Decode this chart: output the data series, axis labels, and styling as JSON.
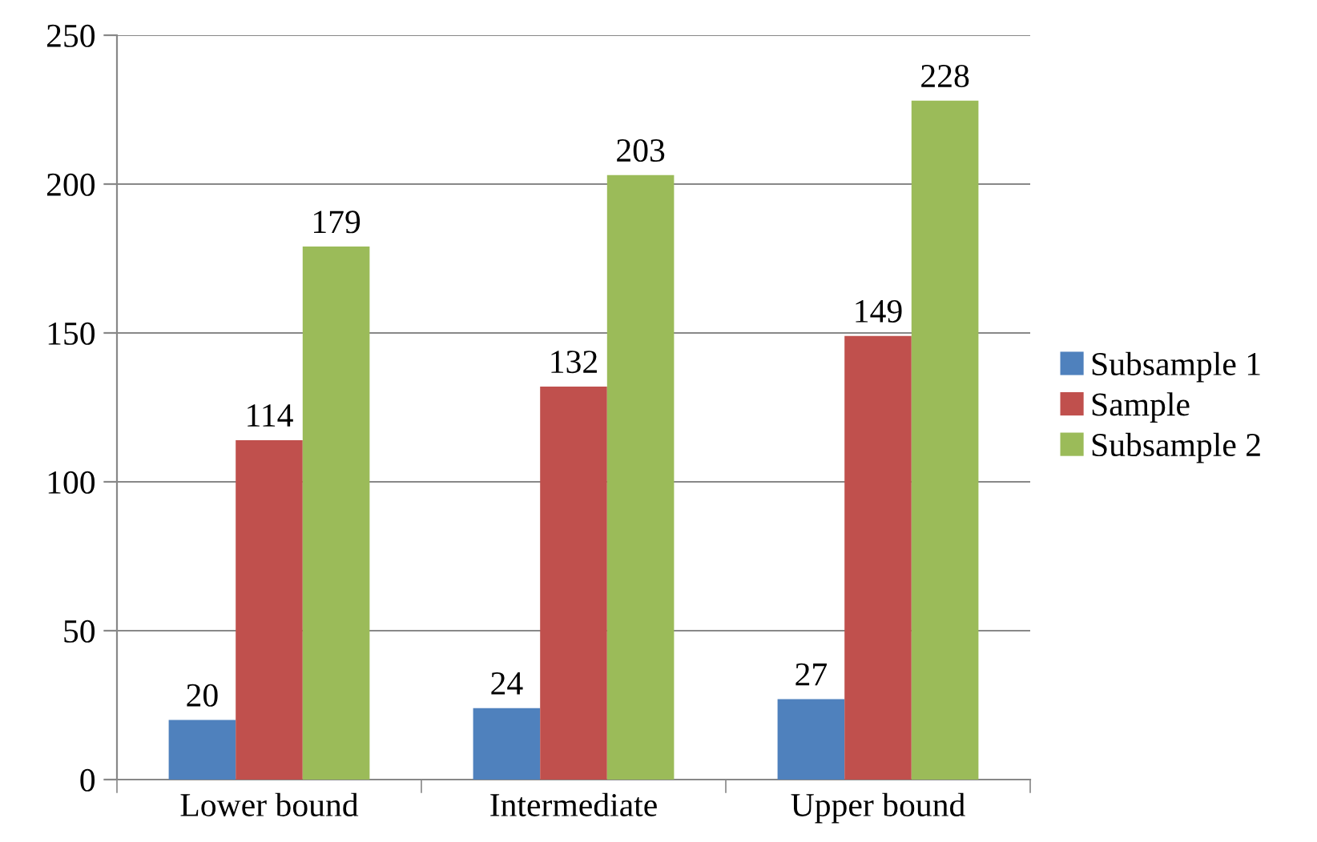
{
  "chart_data": {
    "type": "bar",
    "categories": [
      "Lower bound",
      "Intermediate",
      "Upper bound"
    ],
    "series": [
      {
        "name": "Subsample 1",
        "color": "#4f81bd",
        "values": [
          20,
          24,
          27
        ]
      },
      {
        "name": "Sample",
        "color": "#c0504d",
        "values": [
          114,
          132,
          149
        ]
      },
      {
        "name": "Subsample 2",
        "color": "#9bbb59",
        "values": [
          179,
          203,
          228
        ]
      }
    ],
    "ylim": [
      0,
      250
    ],
    "yticks": [
      0,
      50,
      100,
      150,
      200,
      250
    ],
    "grid": "y",
    "legend": "right",
    "data_labels": true
  }
}
